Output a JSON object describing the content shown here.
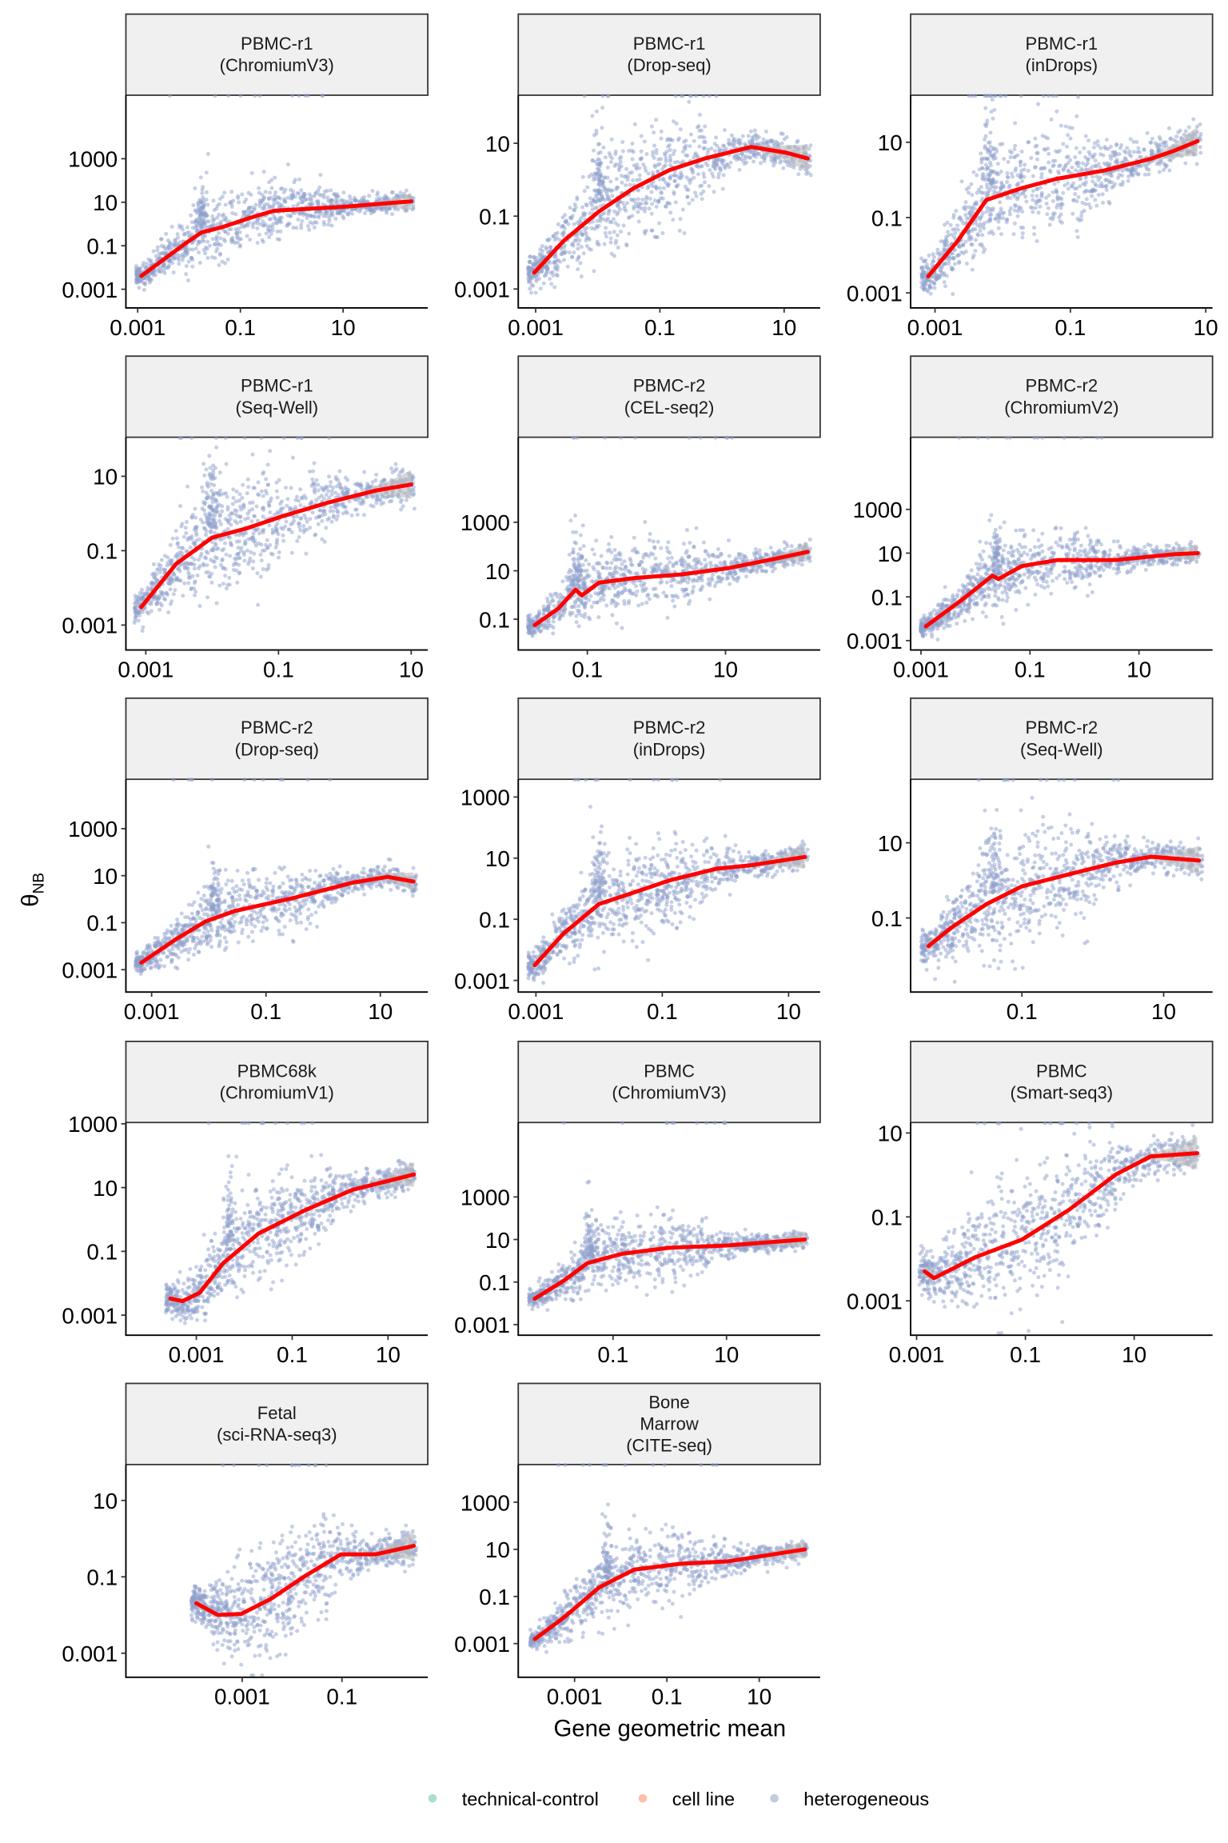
{
  "chart_data": {
    "type": "scatter",
    "layout": "facet grid, 3 columns, free scales, log10 axes on both x and y",
    "xlabel": "Gene geometric mean",
    "ylabel": "θ",
    "ylabel_subscript": "NB",
    "scale": "log10",
    "smoother_color": "#ff0000",
    "ribbon_color": "#bdbdbd",
    "legend": {
      "placement": "bottom",
      "entries": [
        {
          "label": "technical-control",
          "color": "#66c2a5"
        },
        {
          "label": "cell line",
          "color": "#fc8d62"
        },
        {
          "label": "heterogeneous",
          "color": "#8da0cb"
        }
      ]
    },
    "panels": [
      {
        "title": [
          "PBMC-r1",
          "(ChromiumV3)"
        ],
        "xlim_log10": [
          -3.23,
          2.65
        ],
        "ylim_log10": [
          -3.86,
          5.92
        ],
        "xticks": [
          "0.001",
          "0.1",
          "10"
        ],
        "yticks": [
          "0.001",
          "0.1",
          "10",
          "1000"
        ],
        "trend_log10": [
          [
            -2.93,
            -2.39
          ],
          [
            -2.06,
            -0.88
          ],
          [
            -1.76,
            -0.39
          ],
          [
            -1.35,
            -0.14
          ],
          [
            -0.8,
            0.29
          ],
          [
            -0.36,
            0.6
          ],
          [
            -0.2,
            0.63
          ],
          [
            0.96,
            0.78
          ],
          [
            2.33,
            1.04
          ]
        ],
        "spike_log10x": -1.75
      },
      {
        "title": [
          "PBMC-r1",
          "(Drop-seq)"
        ],
        "xlim_log10": [
          -3.28,
          1.58
        ],
        "ylim_log10": [
          -3.52,
          2.32
        ],
        "xticks": [
          "0.001",
          "0.1",
          "10"
        ],
        "yticks": [
          "0.001",
          "0.1",
          "10"
        ],
        "trend_log10": [
          [
            -3.02,
            -2.55
          ],
          [
            -2.55,
            -1.68
          ],
          [
            -1.98,
            -0.87
          ],
          [
            -1.42,
            -0.23
          ],
          [
            -0.85,
            0.26
          ],
          [
            -0.28,
            0.58
          ],
          [
            0.47,
            0.9
          ],
          [
            1.04,
            0.74
          ],
          [
            1.38,
            0.58
          ]
        ],
        "spike_log10x": -2.0
      },
      {
        "title": [
          "PBMC-r1",
          "(inDrops)"
        ],
        "xlim_log10": [
          -3.36,
          1.1
        ],
        "ylim_log10": [
          -3.4,
          2.25
        ],
        "xticks": [
          "0.001",
          "0.1",
          "10"
        ],
        "yticks": [
          "0.001",
          "0.1",
          "10"
        ],
        "trend_log10": [
          [
            -3.1,
            -2.56
          ],
          [
            -2.67,
            -1.63
          ],
          [
            -2.24,
            -0.53
          ],
          [
            -1.72,
            -0.22
          ],
          [
            -1.2,
            0.03
          ],
          [
            -0.5,
            0.25
          ],
          [
            0.19,
            0.56
          ],
          [
            0.54,
            0.78
          ],
          [
            0.88,
            1.03
          ]
        ],
        "spike_log10x": -2.2
      },
      {
        "title": [
          "PBMC-r1",
          "(Seq-Well)"
        ],
        "xlim_log10": [
          -3.3,
          1.25
        ],
        "ylim_log10": [
          -3.67,
          2.05
        ],
        "xticks": [
          "0.001",
          "0.1",
          "10"
        ],
        "yticks": [
          "0.001",
          "0.1",
          "10"
        ],
        "trend_log10": [
          [
            -3.07,
            -2.52
          ],
          [
            -2.54,
            -1.35
          ],
          [
            -2.0,
            -0.65
          ],
          [
            -1.48,
            -0.4
          ],
          [
            -0.95,
            -0.08
          ],
          [
            -0.24,
            0.3
          ],
          [
            0.47,
            0.62
          ],
          [
            1.0,
            0.78
          ]
        ],
        "spike_log10x": -2.0
      },
      {
        "title": [
          "PBMC-r2",
          "(CEL-seq2)"
        ],
        "xlim_log10": [
          -2.0,
          2.37
        ],
        "ylim_log10": [
          -2.27,
          6.51
        ],
        "xticks": [
          "0.1",
          "10"
        ],
        "yticks": [
          "0.1",
          "10",
          "1000"
        ],
        "trend_log10": [
          [
            -1.76,
            -1.24
          ],
          [
            -1.42,
            -0.56
          ],
          [
            -1.17,
            0.22
          ],
          [
            -1.08,
            -0.02
          ],
          [
            -0.83,
            0.51
          ],
          [
            -0.32,
            0.7
          ],
          [
            0.36,
            0.85
          ],
          [
            1.03,
            1.1
          ],
          [
            1.71,
            1.49
          ],
          [
            2.19,
            1.78
          ]
        ],
        "spike_log10x": -1.15
      },
      {
        "title": [
          "PBMC-r2",
          "(ChromiumV2)"
        ],
        "xlim_log10": [
          -3.19,
          2.35
        ],
        "ylim_log10": [
          -3.43,
          6.3
        ],
        "xticks": [
          "0.001",
          "0.1",
          "10"
        ],
        "yticks": [
          "0.001",
          "0.1",
          "10",
          "1000"
        ],
        "trend_log10": [
          [
            -2.91,
            -2.35
          ],
          [
            -2.23,
            -1.1
          ],
          [
            -1.69,
            -0.03
          ],
          [
            -1.58,
            -0.19
          ],
          [
            -1.15,
            0.41
          ],
          [
            -0.5,
            0.68
          ],
          [
            0.57,
            0.68
          ],
          [
            1.65,
            0.95
          ],
          [
            2.08,
            1.0
          ]
        ],
        "spike_log10x": -1.6
      },
      {
        "title": [
          "PBMC-r2",
          "(Drop-seq)"
        ],
        "xlim_log10": [
          -3.45,
          1.83
        ],
        "ylim_log10": [
          -3.95,
          5.1
        ],
        "xticks": [
          "0.001",
          "0.1",
          "10"
        ],
        "yticks": [
          "0.001",
          "0.1",
          "10",
          "1000"
        ],
        "trend_log10": [
          [
            -3.18,
            -2.7
          ],
          [
            -2.57,
            -1.7
          ],
          [
            -2.06,
            -0.95
          ],
          [
            -1.54,
            -0.5
          ],
          [
            -0.52,
            0.05
          ],
          [
            0.51,
            0.7
          ],
          [
            1.13,
            0.95
          ],
          [
            1.58,
            0.75
          ]
        ],
        "spike_log10x": -1.9
      },
      {
        "title": [
          "PBMC-r2",
          "(inDrops)"
        ],
        "xlim_log10": [
          -3.28,
          1.5
        ],
        "ylim_log10": [
          -3.38,
          3.58
        ],
        "xticks": [
          "0.001",
          "0.1",
          "10"
        ],
        "yticks": [
          "0.001",
          "0.1",
          "10",
          "1000"
        ],
        "trend_log10": [
          [
            -3.02,
            -2.5
          ],
          [
            -2.56,
            -1.46
          ],
          [
            -2.0,
            -0.5
          ],
          [
            -1.44,
            -0.12
          ],
          [
            -0.89,
            0.27
          ],
          [
            -0.15,
            0.65
          ],
          [
            0.41,
            0.77
          ],
          [
            1.26,
            1.04
          ]
        ],
        "spike_log10x": -2.0
      },
      {
        "title": [
          "PBMC-r2",
          "(Seq-Well)"
        ],
        "xlim_log10": [
          -2.57,
          1.69
        ],
        "ylim_log10": [
          -2.97,
          2.69
        ],
        "xticks": [
          "0.1",
          "10"
        ],
        "yticks": [
          "0.1",
          "10"
        ],
        "trend_log10": [
          [
            -2.32,
            -1.75
          ],
          [
            -1.99,
            -1.25
          ],
          [
            -1.5,
            -0.63
          ],
          [
            -1.0,
            -0.16
          ],
          [
            -0.34,
            0.16
          ],
          [
            0.32,
            0.47
          ],
          [
            0.82,
            0.63
          ],
          [
            1.5,
            0.53
          ]
        ],
        "spike_log10x": -1.4
      },
      {
        "title": [
          "PBMC68k",
          "(ChromiumV1)"
        ],
        "xlim_log10": [
          -4.47,
          1.83
        ],
        "ylim_log10": [
          -3.63,
          3.04
        ],
        "xticks": [
          "0.001",
          "0.1",
          "10"
        ],
        "yticks": [
          "0.001",
          "0.1",
          "10",
          "1000"
        ],
        "trend_log10": [
          [
            -3.54,
            -2.48
          ],
          [
            -3.29,
            -2.56
          ],
          [
            -2.93,
            -2.3
          ],
          [
            -2.44,
            -1.37
          ],
          [
            -1.7,
            -0.44
          ],
          [
            -0.72,
            0.3
          ],
          [
            0.26,
            0.93
          ],
          [
            1.54,
            1.41
          ]
        ],
        "spike_log10x": -2.3
      },
      {
        "title": [
          "PBMC",
          "(ChromiumV3)"
        ],
        "xlim_log10": [
          -2.67,
          2.65
        ],
        "ylim_log10": [
          -3.5,
          6.5
        ],
        "xticks": [
          "0.1",
          "10"
        ],
        "yticks": [
          "0.001",
          "0.1",
          "10",
          "1000"
        ],
        "trend_log10": [
          [
            -2.38,
            -1.78
          ],
          [
            -1.87,
            -0.94
          ],
          [
            -1.45,
            -0.11
          ],
          [
            -0.84,
            0.33
          ],
          [
            -0.01,
            0.61
          ],
          [
            1.02,
            0.72
          ],
          [
            2.38,
            1.0
          ]
        ],
        "spike_log10x": -1.4
      },
      {
        "title": [
          "PBMC",
          "(Smart-seq3)"
        ],
        "xlim_log10": [
          -3.11,
          2.44
        ],
        "ylim_log10": [
          -3.82,
          1.25
        ],
        "xticks": [
          "0.001",
          "0.1",
          "10"
        ],
        "yticks": [
          "0.001",
          "0.1",
          "10"
        ],
        "trend_log10": [
          [
            -2.85,
            -2.3
          ],
          [
            -2.68,
            -2.46
          ],
          [
            -1.92,
            -1.96
          ],
          [
            -1.06,
            -1.54
          ],
          [
            -0.2,
            -0.83
          ],
          [
            0.66,
            0.01
          ],
          [
            1.3,
            0.44
          ],
          [
            2.16,
            0.52
          ]
        ],
        "spike_log10x": null
      },
      {
        "title": [
          "Fetal",
          "(sci-RNA-seq3)"
        ],
        "xlim_log10": [
          -5.33,
          0.72
        ],
        "ylim_log10": [
          -3.63,
          1.94
        ],
        "xticks": [
          "0.001",
          "0.1"
        ],
        "yticks": [
          "0.001",
          "0.1",
          "10"
        ],
        "trend_log10": [
          [
            -3.92,
            -1.69
          ],
          [
            -3.49,
            -2.0
          ],
          [
            -3.02,
            -1.97
          ],
          [
            -2.44,
            -1.59
          ],
          [
            -1.73,
            -0.97
          ],
          [
            -1.02,
            -0.41
          ],
          [
            -0.32,
            -0.41
          ],
          [
            0.44,
            -0.19
          ]
        ],
        "spike_log10x": null
      },
      {
        "title": [
          "Bone",
          "Marrow",
          "(CITE-seq)"
        ],
        "xlim_log10": [
          -4.22,
          2.32
        ],
        "ylim_log10": [
          -4.43,
          4.6
        ],
        "xticks": [
          "0.001",
          "0.1",
          "10"
        ],
        "yticks": [
          "0.001",
          "0.1",
          "10",
          "1000"
        ],
        "trend_log10": [
          [
            -3.86,
            -2.81
          ],
          [
            -3.23,
            -1.89
          ],
          [
            -2.47,
            -0.62
          ],
          [
            -1.71,
            0.14
          ],
          [
            -0.7,
            0.39
          ],
          [
            0.32,
            0.49
          ],
          [
            1.99,
            1.0
          ]
        ],
        "spike_log10x": -2.3
      }
    ]
  }
}
